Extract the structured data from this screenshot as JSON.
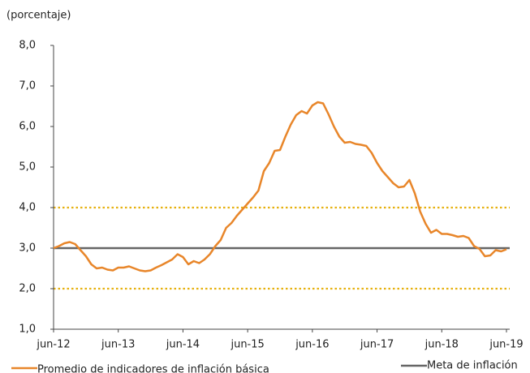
{
  "chart_data": {
    "type": "line",
    "ylabel": "(porcentaje)",
    "categories": [
      "jun-12",
      null,
      null,
      null,
      null,
      null,
      null,
      null,
      null,
      null,
      null,
      null,
      "jun-13",
      null,
      null,
      null,
      null,
      null,
      null,
      null,
      null,
      null,
      null,
      null,
      "jun-14",
      null,
      null,
      null,
      null,
      null,
      null,
      null,
      null,
      null,
      null,
      null,
      "jun-15",
      null,
      null,
      null,
      null,
      null,
      null,
      null,
      null,
      null,
      null,
      null,
      "jun-16",
      null,
      null,
      null,
      null,
      null,
      null,
      null,
      null,
      null,
      null,
      null,
      "jun-17",
      null,
      null,
      null,
      null,
      null,
      null,
      null,
      null,
      null,
      null,
      null,
      "jun-18",
      null,
      null,
      null,
      null,
      null,
      null,
      null,
      null,
      null,
      null,
      null,
      "jun-19"
    ],
    "series": [
      {
        "name": "Promedio de indicadores de inflación básica",
        "color": "#e8862a",
        "values": [
          3.0,
          3.05,
          3.12,
          3.15,
          3.1,
          2.95,
          2.8,
          2.6,
          2.5,
          2.52,
          2.47,
          2.45,
          2.52,
          2.52,
          2.55,
          2.5,
          2.45,
          2.43,
          2.45,
          2.52,
          2.58,
          2.65,
          2.72,
          2.85,
          2.78,
          2.6,
          2.68,
          2.63,
          2.72,
          2.85,
          3.05,
          3.2,
          3.5,
          3.62,
          3.8,
          3.95,
          4.1,
          4.25,
          4.42,
          4.9,
          5.1,
          5.4,
          5.42,
          5.75,
          6.05,
          6.28,
          6.38,
          6.32,
          6.52,
          6.6,
          6.57,
          6.3,
          6.0,
          5.75,
          5.6,
          5.62,
          5.57,
          5.55,
          5.52,
          5.35,
          5.1,
          4.9,
          4.75,
          4.6,
          4.5,
          4.52,
          4.68,
          4.35,
          3.9,
          3.6,
          3.38,
          3.45,
          3.35,
          3.35,
          3.32,
          3.28,
          3.3,
          3.25,
          3.05,
          2.98,
          2.8,
          2.82,
          2.95,
          2.92,
          2.97
        ]
      }
    ],
    "reference_lines": [
      {
        "name": "Meta de inflación",
        "value": 3,
        "color": "#666666",
        "style": "solid"
      },
      {
        "value": 2,
        "color": "#e6b00e",
        "style": "dotted"
      },
      {
        "value": 4,
        "color": "#e6b00e",
        "style": "dotted"
      }
    ],
    "ylim": [
      1,
      8
    ],
    "yticks": [
      {
        "value": 1,
        "label": "1,0"
      },
      {
        "value": 2,
        "label": "2,0"
      },
      {
        "value": 3,
        "label": "3,0"
      },
      {
        "value": 4,
        "label": "4,0"
      },
      {
        "value": 5,
        "label": "5,0"
      },
      {
        "value": 6,
        "label": "6,0"
      },
      {
        "value": 7,
        "label": "7,0"
      },
      {
        "value": 8,
        "label": "8,0"
      }
    ],
    "grid": false
  }
}
